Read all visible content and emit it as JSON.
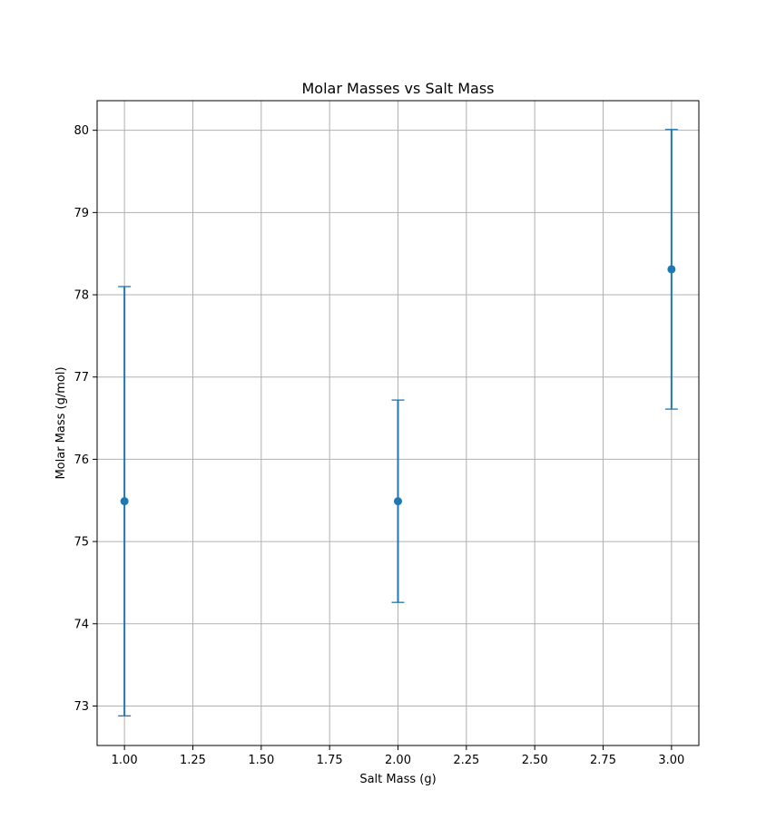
{
  "chart_data": {
    "type": "scatter",
    "title": "Molar Masses vs Salt Mass",
    "xlabel": "Salt Mass (g)",
    "ylabel": "Molar Mass (g/mol)",
    "xlim": [
      0.9,
      3.1
    ],
    "ylim": [
      72.52,
      80.36
    ],
    "x_ticks": [
      1.0,
      1.25,
      1.5,
      1.75,
      2.0,
      2.25,
      2.5,
      2.75,
      3.0
    ],
    "x_tick_labels": [
      "1.00",
      "1.25",
      "1.50",
      "1.75",
      "2.00",
      "2.25",
      "2.50",
      "2.75",
      "3.00"
    ],
    "y_ticks": [
      73,
      74,
      75,
      76,
      77,
      78,
      79,
      80
    ],
    "y_tick_labels": [
      "73",
      "74",
      "75",
      "76",
      "77",
      "78",
      "79",
      "80"
    ],
    "grid": true,
    "series": [
      {
        "x": [
          1.0,
          2.0,
          3.0
        ],
        "y": [
          75.49,
          75.49,
          78.31
        ],
        "yerr": [
          2.61,
          1.23,
          1.7
        ],
        "color": "#1f77b4"
      }
    ]
  }
}
